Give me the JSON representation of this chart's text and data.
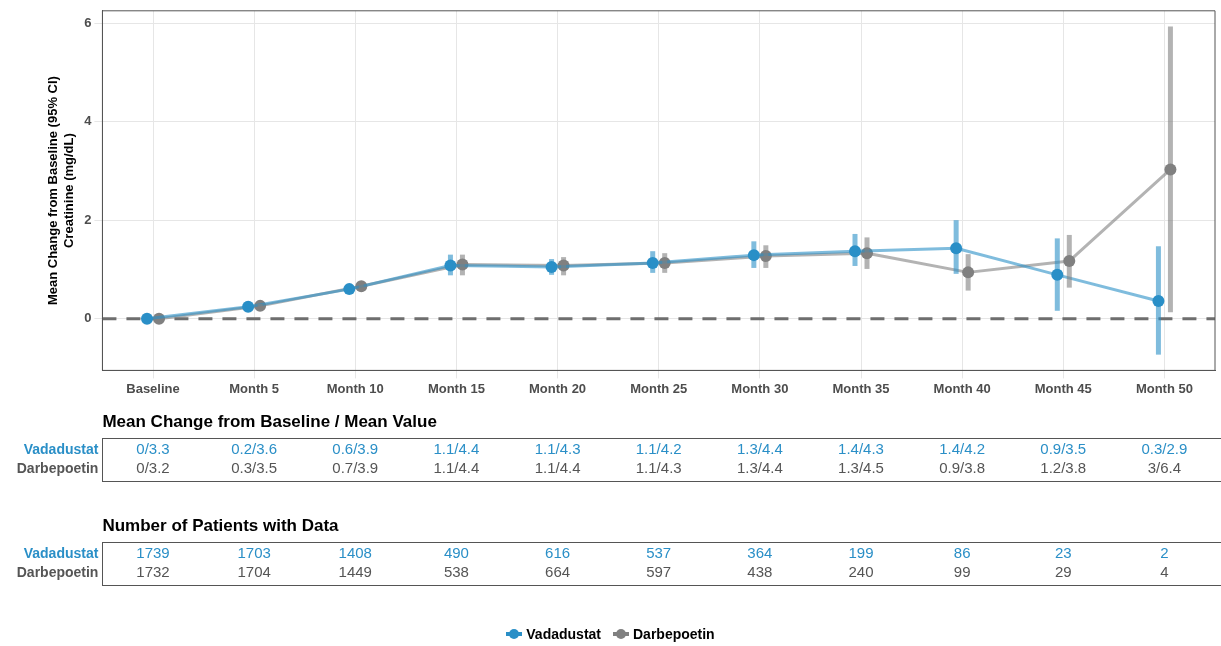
{
  "chart_data": {
    "type": "line",
    "ylabel": "Mean Change from Baseline (95% CI)\nCreatinine (mg/dL)",
    "categories": [
      "Baseline",
      "Month 5",
      "Month 10",
      "Month 15",
      "Month 20",
      "Month 25",
      "Month 30",
      "Month 35",
      "Month 40",
      "Month 45",
      "Month 50"
    ],
    "series": [
      {
        "name": "Vadadustat",
        "color": "#2a8fc7",
        "values": [
          0,
          0.24,
          0.6,
          1.08,
          1.05,
          1.13,
          1.29,
          1.37,
          1.43,
          0.89,
          0.36
        ],
        "errors": [
          null,
          [
            0.2,
            0.28
          ],
          [
            0.55,
            0.66
          ],
          [
            0.88,
            1.3
          ],
          [
            0.89,
            1.21
          ],
          [
            0.93,
            1.37
          ],
          [
            1.03,
            1.57
          ],
          [
            1.07,
            1.72
          ],
          [
            0.91,
            2.0
          ],
          [
            0.16,
            1.63
          ],
          [
            -0.73,
            1.47
          ]
        ],
        "value_labels": [
          "0/3.3",
          "0.2/3.6",
          "0.6/3.9",
          "1.1/4.4",
          "1.1/4.3",
          "1.1/4.2",
          "1.3/4.4",
          "1.4/4.3",
          "1.4/4.2",
          "0.9/3.5",
          "0.3/2.9"
        ]
      },
      {
        "name": "Darbepoetin",
        "color": "#808080",
        "values": [
          0,
          0.26,
          0.66,
          1.1,
          1.08,
          1.13,
          1.27,
          1.33,
          0.94,
          1.17,
          3.03
        ],
        "errors": [
          null,
          [
            0.22,
            0.3
          ],
          [
            0.6,
            0.72
          ],
          [
            0.88,
            1.3
          ],
          [
            0.88,
            1.25
          ],
          [
            0.93,
            1.33
          ],
          [
            1.03,
            1.49
          ],
          [
            1.01,
            1.65
          ],
          [
            0.57,
            1.31
          ],
          [
            0.63,
            1.7
          ],
          [
            0.13,
            5.93
          ]
        ],
        "value_labels": [
          "0/3.2",
          "0.3/3.5",
          "0.7/3.9",
          "1.1/4.4",
          "1.1/4.4",
          "1.1/4.3",
          "1.3/4.4",
          "1.3/4.5",
          "0.9/3.8",
          "1.2/3.8",
          "3/6.4"
        ]
      }
    ],
    "ylim": [
      -1.05,
      6.25
    ],
    "yticks": [
      0,
      2,
      4,
      6
    ],
    "grid": true,
    "marker": "circle",
    "line_style": "solid",
    "legend": "bottom",
    "ref_lines": [
      {
        "axis": "y",
        "value": 0,
        "color": "#6e6e6e",
        "line_style": "dashed"
      }
    ],
    "annotations": [
      "Mean Change from Baseline / Mean Value",
      "Number of Patients with Data",
      "1739",
      "1703",
      "1408",
      "490",
      "616",
      "537",
      "364",
      "199",
      "86",
      "23",
      "2",
      "1732",
      "1704",
      "1449",
      "538",
      "664",
      "597",
      "438",
      "240",
      "99",
      "29",
      "4"
    ]
  }
}
